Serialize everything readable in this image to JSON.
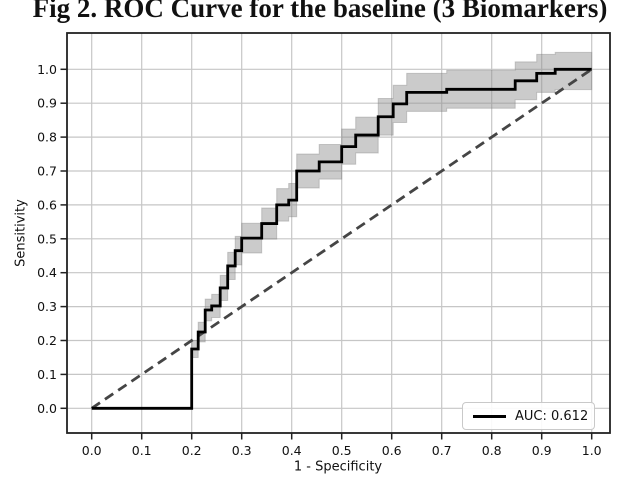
{
  "figure": {
    "title": "Fig 2. ROC Curve for the baseline (3 Biomarkers)"
  },
  "chart_data": {
    "type": "line",
    "subtype": "roc_step_curve_with_confidence_band",
    "title": "Fig 2. ROC Curve for the baseline (3 Biomarkers)",
    "xlabel": "1 - Specificity",
    "ylabel": "Sensitivity",
    "xlim": [
      -0.05,
      1.04
    ],
    "ylim": [
      -0.073,
      1.107
    ],
    "grid": true,
    "auc": 0.612,
    "x_ticks": [
      "0.0",
      "0.1",
      "0.2",
      "0.3",
      "0.4",
      "0.5",
      "0.6",
      "0.7",
      "0.8",
      "0.9",
      "1.0"
    ],
    "y_ticks": [
      "0.0",
      "0.1",
      "0.2",
      "0.3",
      "0.4",
      "0.5",
      "0.6",
      "0.7",
      "0.8",
      "0.9",
      "1.0"
    ],
    "legend": {
      "label": "AUC: 0.612",
      "position": "lower right",
      "line_color": "#000000"
    },
    "roc_curve": {
      "name": "ROC curve",
      "color": "#000000",
      "points": [
        [
          0.0,
          0.0
        ],
        [
          0.2,
          0.175
        ],
        [
          0.213,
          0.225
        ],
        [
          0.227,
          0.29
        ],
        [
          0.24,
          0.302
        ],
        [
          0.257,
          0.355
        ],
        [
          0.272,
          0.42
        ],
        [
          0.287,
          0.465
        ],
        [
          0.3,
          0.502
        ],
        [
          0.34,
          0.545
        ],
        [
          0.37,
          0.6
        ],
        [
          0.394,
          0.614
        ],
        [
          0.41,
          0.7
        ],
        [
          0.455,
          0.727
        ],
        [
          0.5,
          0.772
        ],
        [
          0.528,
          0.806
        ],
        [
          0.573,
          0.86
        ],
        [
          0.603,
          0.898
        ],
        [
          0.63,
          0.932
        ],
        [
          0.71,
          0.941
        ],
        [
          0.847,
          0.966
        ],
        [
          0.89,
          0.988
        ],
        [
          0.927,
          1.0
        ],
        [
          1.0,
          1.0
        ]
      ]
    },
    "confidence_band": {
      "name": "Confidence band",
      "color": "rgba(140,140,140,0.45)",
      "points": [
        [
          0.0,
          0.0,
          0.0
        ],
        [
          0.2,
          0.15,
          0.2
        ],
        [
          0.213,
          0.196,
          0.254
        ],
        [
          0.227,
          0.258,
          0.322
        ],
        [
          0.24,
          0.268,
          0.336
        ],
        [
          0.257,
          0.318,
          0.392
        ],
        [
          0.272,
          0.38,
          0.46
        ],
        [
          0.287,
          0.423,
          0.507
        ],
        [
          0.3,
          0.458,
          0.546
        ],
        [
          0.34,
          0.499,
          0.591
        ],
        [
          0.37,
          0.552,
          0.648
        ],
        [
          0.394,
          0.565,
          0.663
        ],
        [
          0.41,
          0.65,
          0.75
        ],
        [
          0.455,
          0.676,
          0.778
        ],
        [
          0.5,
          0.72,
          0.824
        ],
        [
          0.528,
          0.753,
          0.859
        ],
        [
          0.573,
          0.806,
          0.914
        ],
        [
          0.603,
          0.843,
          0.953
        ],
        [
          0.63,
          0.876,
          0.988
        ],
        [
          0.71,
          0.885,
          0.997
        ],
        [
          0.847,
          0.91,
          1.022
        ],
        [
          0.89,
          0.932,
          1.044
        ],
        [
          0.927,
          0.94,
          1.05
        ],
        [
          1.0,
          0.94,
          1.05
        ]
      ]
    },
    "chance_line": {
      "name": "Chance diagonal",
      "style": "dashed",
      "color": "#454545",
      "points": [
        [
          0.0,
          0.0
        ],
        [
          1.0,
          1.0
        ]
      ]
    },
    "colors": {
      "grid": "#c6c6c6",
      "spine": "#222222",
      "tick_label": "#111111",
      "background": "#ffffff"
    }
  }
}
